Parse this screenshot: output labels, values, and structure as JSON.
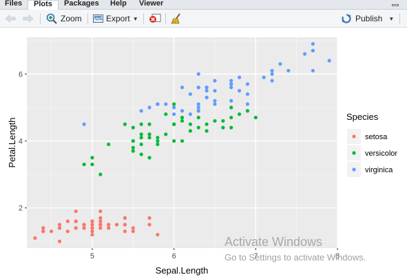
{
  "tabs": [
    {
      "label": "Files",
      "active": false
    },
    {
      "label": "Plots",
      "active": true
    },
    {
      "label": "Packages",
      "active": false
    },
    {
      "label": "Help",
      "active": false
    },
    {
      "label": "Viewer",
      "active": false
    }
  ],
  "toolbar": {
    "zoom_label": "Zoom",
    "export_label": "Export",
    "publish_label": "Publish"
  },
  "watermark": {
    "line1": "Activate Windows",
    "line2": "Go to Settings to activate Windows."
  },
  "colors": {
    "setosa": "#F8766D",
    "versicolor": "#00BA38",
    "virginica": "#619CFF",
    "panel": "#EBEBEB"
  },
  "chart_data": {
    "type": "scatter",
    "xlabel": "Sepal.Length",
    "ylabel": "Petal.Length",
    "xlim": [
      4.2,
      8.0
    ],
    "ylim": [
      0.8,
      7.1
    ],
    "x_ticks": [
      5,
      6,
      7,
      8
    ],
    "y_ticks": [
      2,
      4,
      6
    ],
    "grid": true,
    "legend_title": "Species",
    "legend_position": "right",
    "series": [
      {
        "name": "setosa",
        "color": "#F8766D",
        "points": [
          [
            5.1,
            1.4
          ],
          [
            4.9,
            1.4
          ],
          [
            4.7,
            1.3
          ],
          [
            4.6,
            1.5
          ],
          [
            5.0,
            1.4
          ],
          [
            5.4,
            1.7
          ],
          [
            4.6,
            1.4
          ],
          [
            5.0,
            1.5
          ],
          [
            4.4,
            1.4
          ],
          [
            4.9,
            1.5
          ],
          [
            5.4,
            1.5
          ],
          [
            4.8,
            1.6
          ],
          [
            4.8,
            1.4
          ],
          [
            4.3,
            1.1
          ],
          [
            5.8,
            1.2
          ],
          [
            5.7,
            1.5
          ],
          [
            5.4,
            1.3
          ],
          [
            5.1,
            1.4
          ],
          [
            5.7,
            1.7
          ],
          [
            5.1,
            1.5
          ],
          [
            5.4,
            1.7
          ],
          [
            5.1,
            1.5
          ],
          [
            4.6,
            1.0
          ],
          [
            5.1,
            1.7
          ],
          [
            4.8,
            1.9
          ],
          [
            5.0,
            1.6
          ],
          [
            5.0,
            1.6
          ],
          [
            5.2,
            1.5
          ],
          [
            5.2,
            1.4
          ],
          [
            4.7,
            1.6
          ],
          [
            4.8,
            1.6
          ],
          [
            5.4,
            1.5
          ],
          [
            5.2,
            1.5
          ],
          [
            5.5,
            1.4
          ],
          [
            4.9,
            1.5
          ],
          [
            5.0,
            1.2
          ],
          [
            5.5,
            1.3
          ],
          [
            4.9,
            1.4
          ],
          [
            4.4,
            1.3
          ],
          [
            5.1,
            1.5
          ],
          [
            5.0,
            1.3
          ],
          [
            4.5,
            1.3
          ],
          [
            4.4,
            1.3
          ],
          [
            5.0,
            1.6
          ],
          [
            5.1,
            1.9
          ],
          [
            4.8,
            1.4
          ],
          [
            5.1,
            1.6
          ],
          [
            4.6,
            1.4
          ],
          [
            5.3,
            1.5
          ],
          [
            5.0,
            1.4
          ]
        ]
      },
      {
        "name": "versicolor",
        "color": "#00BA38",
        "points": [
          [
            7.0,
            4.7
          ],
          [
            6.4,
            4.5
          ],
          [
            6.9,
            4.9
          ],
          [
            5.5,
            4.0
          ],
          [
            6.5,
            4.6
          ],
          [
            5.7,
            4.5
          ],
          [
            6.3,
            4.7
          ],
          [
            4.9,
            3.3
          ],
          [
            6.6,
            4.6
          ],
          [
            5.2,
            3.9
          ],
          [
            5.0,
            3.5
          ],
          [
            5.9,
            4.2
          ],
          [
            6.0,
            4.0
          ],
          [
            6.1,
            4.7
          ],
          [
            5.6,
            3.6
          ],
          [
            6.7,
            4.4
          ],
          [
            5.6,
            4.5
          ],
          [
            5.8,
            4.1
          ],
          [
            6.2,
            4.5
          ],
          [
            5.6,
            3.9
          ],
          [
            5.9,
            4.8
          ],
          [
            6.1,
            4.0
          ],
          [
            6.3,
            4.9
          ],
          [
            6.1,
            4.7
          ],
          [
            6.4,
            4.3
          ],
          [
            6.6,
            4.4
          ],
          [
            6.8,
            4.8
          ],
          [
            6.7,
            5.0
          ],
          [
            6.0,
            4.5
          ],
          [
            5.7,
            3.5
          ],
          [
            5.5,
            3.8
          ],
          [
            5.5,
            3.7
          ],
          [
            5.8,
            3.9
          ],
          [
            6.0,
            5.1
          ],
          [
            5.4,
            4.5
          ],
          [
            6.0,
            4.5
          ],
          [
            6.7,
            4.7
          ],
          [
            6.3,
            4.4
          ],
          [
            5.6,
            4.1
          ],
          [
            5.5,
            4.0
          ],
          [
            5.5,
            4.4
          ],
          [
            6.1,
            4.6
          ],
          [
            5.8,
            4.0
          ],
          [
            5.0,
            3.3
          ],
          [
            5.6,
            4.2
          ],
          [
            5.7,
            4.2
          ],
          [
            5.7,
            4.2
          ],
          [
            6.2,
            4.3
          ],
          [
            5.1,
            3.0
          ],
          [
            5.7,
            4.1
          ]
        ]
      },
      {
        "name": "virginica",
        "color": "#619CFF",
        "points": [
          [
            6.3,
            6.0
          ],
          [
            5.8,
            5.1
          ],
          [
            7.1,
            5.9
          ],
          [
            6.3,
            5.6
          ],
          [
            6.5,
            5.8
          ],
          [
            7.6,
            6.6
          ],
          [
            4.9,
            4.5
          ],
          [
            7.3,
            6.3
          ],
          [
            6.7,
            5.8
          ],
          [
            7.2,
            6.1
          ],
          [
            6.5,
            5.1
          ],
          [
            6.4,
            5.3
          ],
          [
            6.8,
            5.5
          ],
          [
            5.7,
            5.0
          ],
          [
            5.8,
            5.1
          ],
          [
            6.4,
            5.3
          ],
          [
            6.5,
            5.5
          ],
          [
            7.7,
            6.7
          ],
          [
            7.7,
            6.9
          ],
          [
            6.0,
            5.0
          ],
          [
            6.9,
            5.7
          ],
          [
            5.6,
            4.9
          ],
          [
            7.7,
            6.7
          ],
          [
            6.3,
            4.9
          ],
          [
            6.7,
            5.7
          ],
          [
            7.2,
            6.0
          ],
          [
            6.2,
            4.8
          ],
          [
            6.1,
            4.9
          ],
          [
            6.4,
            5.6
          ],
          [
            7.2,
            5.8
          ],
          [
            7.4,
            6.1
          ],
          [
            7.9,
            6.4
          ],
          [
            6.4,
            5.6
          ],
          [
            6.3,
            5.1
          ],
          [
            6.1,
            5.6
          ],
          [
            7.7,
            6.1
          ],
          [
            6.3,
            5.6
          ],
          [
            6.4,
            5.5
          ],
          [
            6.0,
            4.8
          ],
          [
            6.9,
            5.4
          ],
          [
            6.7,
            5.6
          ],
          [
            6.9,
            5.1
          ],
          [
            5.8,
            5.1
          ],
          [
            6.8,
            5.9
          ],
          [
            6.7,
            5.7
          ],
          [
            6.7,
            5.2
          ],
          [
            6.3,
            5.0
          ],
          [
            6.5,
            5.2
          ],
          [
            6.2,
            5.4
          ],
          [
            5.9,
            5.1
          ]
        ]
      }
    ]
  }
}
